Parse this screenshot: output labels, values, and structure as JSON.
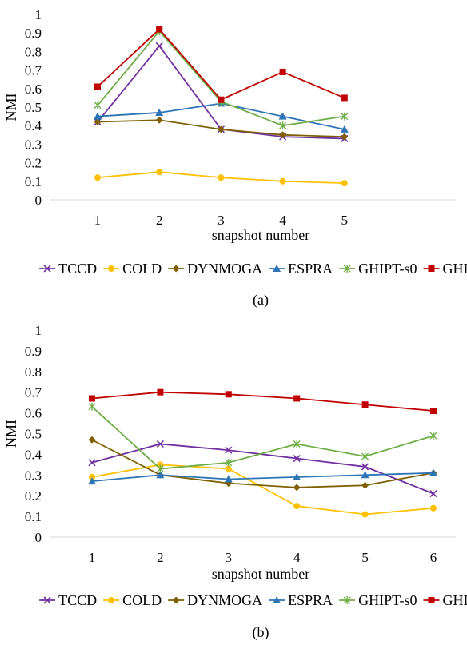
{
  "chart_data": [
    {
      "type": "line",
      "caption": "(a)",
      "xlabel": "snapshot number",
      "ylabel": "NMI",
      "x": [
        1,
        2,
        3,
        4,
        5
      ],
      "ylim": [
        0,
        1
      ],
      "yticks": [
        "0",
        "0.1",
        "0.2",
        "0.3",
        "0.4",
        "0.5",
        "0.6",
        "0.7",
        "0.8",
        "0.9",
        "1"
      ],
      "grid": false,
      "legend_position": "bottom",
      "series": [
        {
          "name": "TCCD",
          "color": "#7030a0",
          "marker": "x",
          "values": [
            0.42,
            0.83,
            0.38,
            0.34,
            0.33
          ]
        },
        {
          "name": "COLD",
          "color": "#ffc000",
          "marker": "circle",
          "values": [
            0.12,
            0.15,
            0.12,
            0.1,
            0.09
          ]
        },
        {
          "name": "DYNMOGA",
          "color": "#7f6000",
          "marker": "diamond",
          "values": [
            0.42,
            0.43,
            0.38,
            0.35,
            0.34
          ]
        },
        {
          "name": "ESPRA",
          "color": "#2e75b6",
          "marker": "triangle",
          "values": [
            0.45,
            0.47,
            0.52,
            0.45,
            0.38
          ]
        },
        {
          "name": "GHIPT-s0",
          "color": "#70ad47",
          "marker": "asterisk",
          "values": [
            0.51,
            0.91,
            0.53,
            0.4,
            0.45
          ]
        },
        {
          "name": "GHIPT",
          "color": "#c00000",
          "marker": "square",
          "values": [
            0.61,
            0.92,
            0.54,
            0.69,
            0.55
          ]
        }
      ]
    },
    {
      "type": "line",
      "caption": "(b)",
      "xlabel": "snapshot number",
      "ylabel": "NMI",
      "x": [
        1,
        2,
        3,
        4,
        5,
        6
      ],
      "ylim": [
        0,
        1
      ],
      "yticks": [
        "0",
        "0.1",
        "0.2",
        "0.3",
        "0.4",
        "0.5",
        "0.6",
        "0.7",
        "0.8",
        "0.9",
        "1"
      ],
      "grid": false,
      "legend_position": "bottom",
      "series": [
        {
          "name": "TCCD",
          "color": "#7030a0",
          "marker": "x",
          "values": [
            0.36,
            0.45,
            0.42,
            0.38,
            0.34,
            0.21
          ]
        },
        {
          "name": "COLD",
          "color": "#ffc000",
          "marker": "circle",
          "values": [
            0.29,
            0.35,
            0.33,
            0.15,
            0.11,
            0.14
          ]
        },
        {
          "name": "DYNMOGA",
          "color": "#7f6000",
          "marker": "diamond",
          "values": [
            0.47,
            0.3,
            0.26,
            0.24,
            0.25,
            0.31
          ]
        },
        {
          "name": "ESPRA",
          "color": "#2e75b6",
          "marker": "triangle",
          "values": [
            0.27,
            0.3,
            0.28,
            0.29,
            0.3,
            0.31
          ]
        },
        {
          "name": "GHIPT-s0",
          "color": "#70ad47",
          "marker": "asterisk",
          "values": [
            0.63,
            0.33,
            0.36,
            0.45,
            0.39,
            0.49
          ]
        },
        {
          "name": "GHIPT",
          "color": "#c00000",
          "marker": "square",
          "values": [
            0.67,
            0.7,
            0.69,
            0.67,
            0.64,
            0.61
          ]
        }
      ]
    }
  ]
}
